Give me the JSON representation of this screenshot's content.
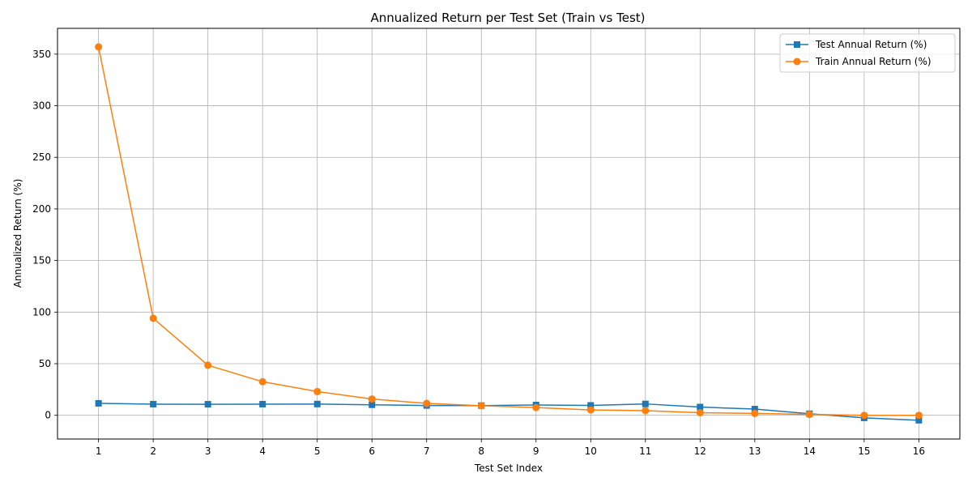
{
  "chart_data": {
    "type": "line",
    "title": "Annualized Return per Test Set (Train vs Test)",
    "xlabel": "Test Set Index",
    "ylabel": "Annualized Return (%)",
    "x": [
      1,
      2,
      3,
      4,
      5,
      6,
      7,
      8,
      9,
      10,
      11,
      12,
      13,
      14,
      15,
      16
    ],
    "xlim": [
      0.25,
      16.75
    ],
    "ylim": [
      -23,
      375
    ],
    "yticks": [
      0,
      50,
      100,
      150,
      200,
      250,
      300,
      350
    ],
    "grid": true,
    "legend_position": "top-right",
    "series": [
      {
        "name": "Test Annual Return (%)",
        "color": "#1f77b4",
        "marker": "square",
        "values": [
          11.6,
          10.8,
          10.7,
          10.8,
          10.9,
          10.2,
          9.5,
          9.4,
          10.0,
          9.6,
          11.0,
          8.0,
          6.0,
          1.5,
          -2.5,
          -4.8
        ]
      },
      {
        "name": "Train Annual Return (%)",
        "color": "#ff7f0e",
        "marker": "circle",
        "values": [
          357.0,
          94.0,
          48.5,
          32.5,
          23.0,
          15.8,
          11.5,
          9.3,
          7.5,
          5.2,
          4.5,
          2.5,
          1.8,
          0.8,
          0.0,
          0.0
        ]
      }
    ]
  }
}
